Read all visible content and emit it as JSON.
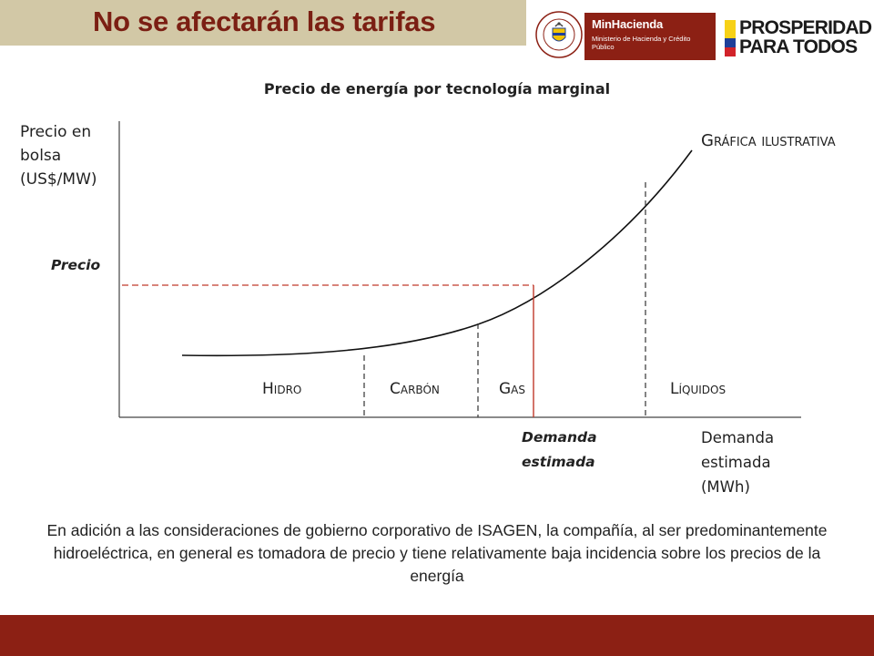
{
  "header": {
    "title": "No se afectarán las tarifas",
    "title_color": "#7b1f13",
    "title_bar_color": "#d2c8a6"
  },
  "logos": {
    "seal_text": "REPÚBLICA DE COLOMBIA",
    "minhacienda_name": "MinHacienda",
    "minhacienda_sub": "Ministerio de Hacienda y Crédito Público",
    "minhacienda_color": "#8c2014",
    "prosperidad_line1": "PROSPERIDAD",
    "prosperidad_line2": "PARA TODOS"
  },
  "diagram": {
    "title": "Precio de energía por tecnología marginal",
    "y_axis_label": "Precio en bolsa (US$/MW)",
    "x_axis_label": "Demanda estimada (MWh)",
    "price_marker_label": "Precio",
    "demand_marker_label": "Demanda estimada",
    "illustrative_label": "Gráfica ilustrativa",
    "technologies": [
      "Hidro",
      "Carbón",
      "Gas",
      "Líquidos"
    ],
    "curve_color": "#111111",
    "marker_color": "#c0392b"
  },
  "note": "En adición a las consideraciones de gobierno corporativo de ISAGEN, la compañía, al ser predominantemente hidroeléctrica, en general es tomadora de precio y tiene relativamente baja incidencia sobre los precios de la energía",
  "footer": {
    "band_color": "#8c2014"
  }
}
